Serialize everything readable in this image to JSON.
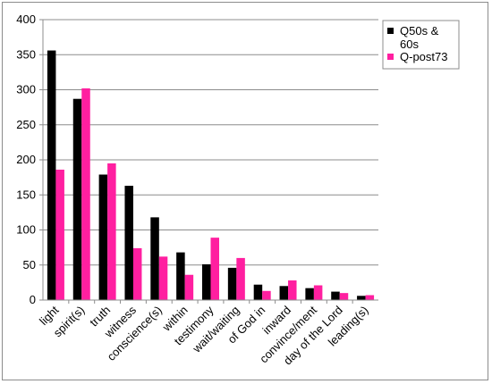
{
  "chart_data": {
    "type": "bar",
    "categories": [
      "light",
      "spirit(s)",
      "truth",
      "witness",
      "conscience(s)",
      "within",
      "testimony",
      "wait/waiting",
      "of God in",
      "inward",
      "convince/ment",
      "day of the Lord",
      "leading(s)"
    ],
    "series": [
      {
        "name": "Q50s & 60s",
        "color": "#000000",
        "values": [
          356,
          287,
          179,
          163,
          118,
          68,
          51,
          46,
          22,
          20,
          17,
          12,
          6
        ]
      },
      {
        "name": "Q-post73",
        "color": "#ff1fa0",
        "values": [
          186,
          302,
          195,
          74,
          62,
          36,
          89,
          60,
          13,
          28,
          21,
          10,
          7
        ]
      }
    ],
    "legend_lines": [
      [
        "Q50s &",
        "60s"
      ],
      [
        "Q-post73"
      ]
    ],
    "yticks": [
      "0",
      "50",
      "100",
      "150",
      "200",
      "250",
      "300",
      "350",
      "400"
    ],
    "ylim": [
      0,
      400
    ],
    "grid": true,
    "legend_position": "top-right",
    "title": "",
    "xlabel": "",
    "ylabel": ""
  }
}
